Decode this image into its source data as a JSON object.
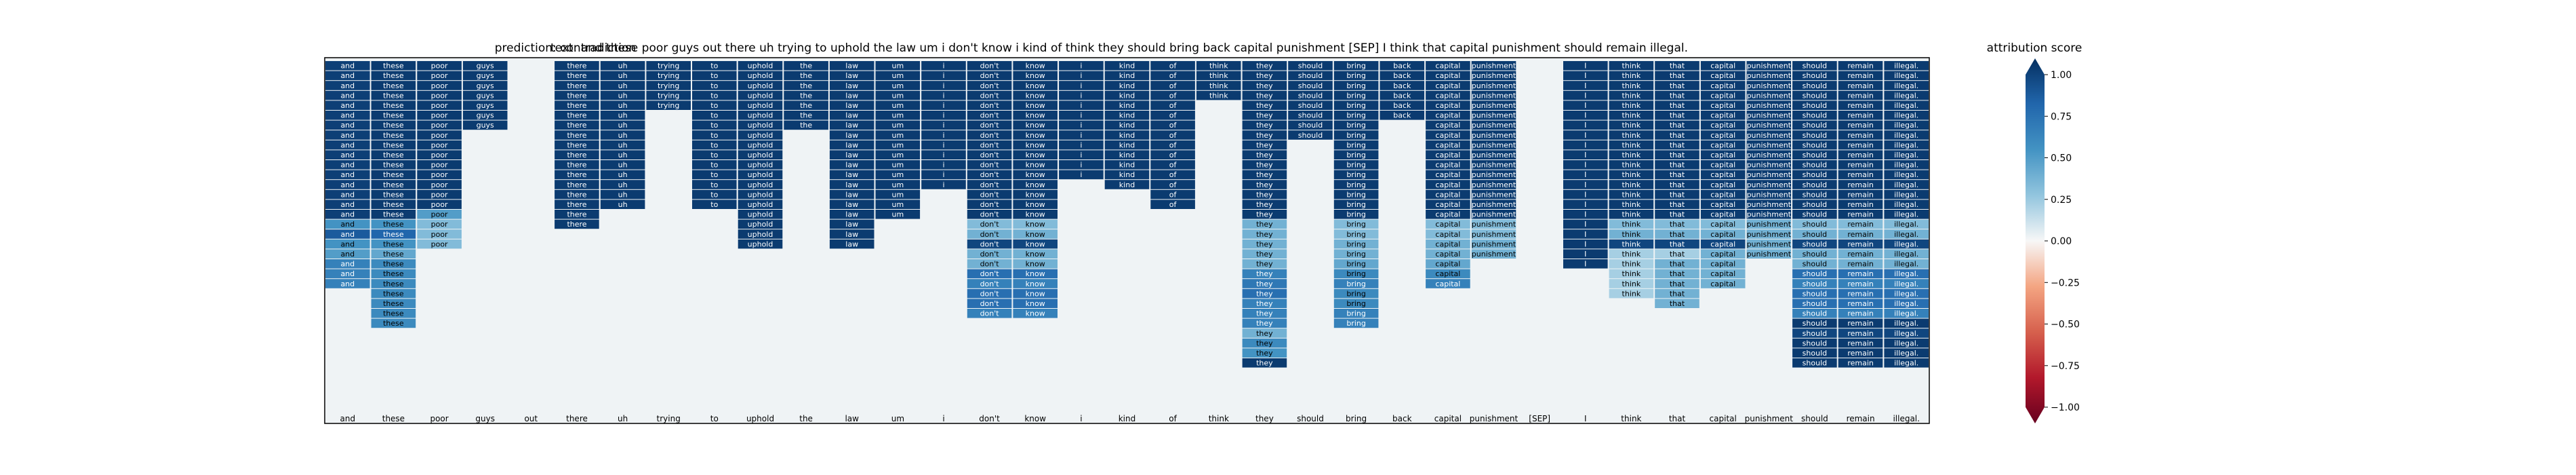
{
  "chart_data": {
    "type": "heatmap",
    "title_prediction": "prediction:  contradiction",
    "title_text": "text:  and these poor guys out there uh trying to uphold the law um i don't know i kind of think they should bring back capital punishment [SEP] I think that capital punishment should remain illegal.",
    "tokens": [
      "and",
      "these",
      "poor",
      "guys",
      "out",
      "there",
      "uh",
      "trying",
      "to",
      "uphold",
      "the",
      "law",
      "um",
      "i",
      "don't",
      "know",
      "i",
      "kind",
      "of",
      "think",
      "they",
      "should",
      "bring",
      "back",
      "capital",
      "punishment",
      "[SEP]",
      "I",
      "think",
      "that",
      "capital",
      "punishment",
      "should",
      "remain",
      "illegal."
    ],
    "cell_labels": [
      "and",
      "these",
      "poor",
      "guys",
      "out",
      "there",
      "uh",
      "trying",
      "to",
      "uphold",
      "the",
      "law",
      "um",
      "i",
      "don't",
      "know",
      "i",
      "kind",
      "of",
      "think",
      "they",
      "should",
      "bring",
      "back",
      "capital",
      "punishment",
      "",
      "I",
      "think",
      "that",
      "capital",
      "punishment",
      "should",
      "remain",
      "illegal."
    ],
    "rows": 23,
    "column_extents": [
      [
        0,
        15,
        -1
      ],
      [
        0,
        19,
        -1
      ],
      [
        0,
        14,
        -1
      ],
      [
        0,
        5,
        -1
      ],
      [
        0,
        -1,
        -1
      ],
      [
        0,
        13,
        -1
      ],
      [
        0,
        11,
        -1
      ],
      [
        0,
        3,
        -1
      ],
      [
        0,
        11,
        -1
      ],
      [
        0,
        15,
        -1
      ],
      [
        0,
        5,
        -1
      ],
      [
        0,
        15,
        -1
      ],
      [
        0,
        12,
        -1
      ],
      [
        0,
        9,
        -1
      ],
      [
        0,
        21,
        -1
      ],
      [
        0,
        21,
        -1
      ],
      [
        0,
        8,
        -1
      ],
      [
        0,
        9,
        -1
      ],
      [
        0,
        11,
        -1
      ],
      [
        0,
        1,
        -1
      ],
      [
        0,
        26,
        -1
      ],
      [
        0,
        4,
        -1
      ],
      [
        0,
        23,
        -1
      ],
      [
        0,
        2,
        -1
      ],
      [
        0,
        19,
        -1
      ],
      [
        0,
        16,
        -1
      ],
      [
        0,
        -1,
        -1
      ],
      [
        0,
        17,
        -1
      ],
      [
        0,
        20,
        -1
      ],
      [
        0,
        21,
        -1
      ],
      [
        0,
        18,
        -1
      ],
      [
        0,
        15,
        -1
      ],
      [
        0,
        26,
        -1
      ],
      [
        0,
        28,
        -1
      ],
      [
        0,
        28,
        -1
      ]
    ],
    "column_values": [
      [
        0.93,
        0.93,
        0.93,
        0.93,
        0.93,
        0.93,
        0.93,
        0.93,
        0.93,
        0.93,
        0.93,
        0.93,
        0.93,
        0.93,
        0.93,
        0.93,
        0.5,
        0.8,
        0.5,
        0.45,
        0.6,
        0.6,
        0.6
      ],
      [
        0.95,
        0.95,
        0.95,
        0.95,
        0.95,
        0.95,
        0.95,
        0.95,
        0.95,
        0.95,
        0.95,
        0.95,
        0.95,
        0.95,
        0.95,
        0.95,
        0.5,
        0.75,
        0.5,
        0.4,
        0.55,
        0.55,
        0.55,
        0.55,
        0.55,
        0.55,
        0.55
      ],
      [
        0.95,
        0.95,
        0.95,
        0.95,
        0.95,
        0.95,
        0.95,
        0.95,
        0.95,
        0.95,
        0.95,
        0.95,
        0.95,
        0.95,
        0.95,
        0.45,
        0.3,
        0.3,
        0.3
      ],
      [
        0.95,
        0.95,
        0.95,
        0.95,
        0.95,
        0.95,
        0.95
      ],
      [
        0.0
      ],
      [
        0.95,
        0.95,
        0.95,
        0.95,
        0.95,
        0.95,
        0.95,
        0.95,
        0.95,
        0.95,
        0.95,
        0.95,
        0.95,
        0.95,
        0.95,
        0.95,
        0.95
      ],
      [
        0.95,
        0.95,
        0.95,
        0.95,
        0.95,
        0.95,
        0.95,
        0.95,
        0.95,
        0.95,
        0.95,
        0.95,
        0.95,
        0.95,
        0.95
      ],
      [
        0.95,
        0.95,
        0.95,
        0.95,
        0.95
      ],
      [
        0.95,
        0.95,
        0.95,
        0.95,
        0.95,
        0.95,
        0.95,
        0.95,
        0.95,
        0.95,
        0.95,
        0.95,
        0.95,
        0.95,
        0.95
      ],
      [
        0.95,
        0.95,
        0.95,
        0.95,
        0.95,
        0.95,
        0.95,
        0.95,
        0.95,
        0.95,
        0.95,
        0.95,
        0.95,
        0.95,
        0.95,
        0.95,
        0.95,
        0.95,
        0.95
      ],
      [
        0.95,
        0.95,
        0.95,
        0.95,
        0.95,
        0.95,
        0.95
      ],
      [
        0.95,
        0.95,
        0.95,
        0.95,
        0.95,
        0.95,
        0.95,
        0.95,
        0.95,
        0.95,
        0.95,
        0.95,
        0.95,
        0.95,
        0.95,
        0.95,
        0.95,
        0.95,
        0.95
      ],
      [
        0.95,
        0.95,
        0.95,
        0.95,
        0.95,
        0.95,
        0.95,
        0.95,
        0.95,
        0.95,
        0.95,
        0.95,
        0.95,
        0.95,
        0.95,
        0.95
      ],
      [
        0.95,
        0.95,
        0.95,
        0.95,
        0.95,
        0.95,
        0.95,
        0.95,
        0.95,
        0.95,
        0.95,
        0.95,
        0.95
      ],
      [
        0.95,
        0.95,
        0.95,
        0.95,
        0.95,
        0.95,
        0.95,
        0.95,
        0.95,
        0.95,
        0.95,
        0.95,
        0.95,
        0.95,
        0.95,
        0.95,
        0.3,
        0.35,
        0.9,
        0.35,
        0.35,
        0.7,
        0.6,
        0.7,
        0.7,
        0.6
      ],
      [
        0.95,
        0.95,
        0.95,
        0.95,
        0.95,
        0.95,
        0.95,
        0.95,
        0.95,
        0.95,
        0.95,
        0.95,
        0.95,
        0.95,
        0.95,
        0.95,
        0.3,
        0.35,
        0.9,
        0.35,
        0.35,
        0.7,
        0.6,
        0.7,
        0.7,
        0.6
      ],
      [
        0.95,
        0.95,
        0.95,
        0.95,
        0.95,
        0.95,
        0.95,
        0.95,
        0.95,
        0.95,
        0.95,
        0.95
      ],
      [
        0.95,
        0.95,
        0.95,
        0.95,
        0.95,
        0.95,
        0.95,
        0.95,
        0.95,
        0.95,
        0.95,
        0.95,
        0.95
      ],
      [
        0.95,
        0.95,
        0.95,
        0.95,
        0.95,
        0.95,
        0.95,
        0.95,
        0.95,
        0.95,
        0.95,
        0.95,
        0.95,
        0.95,
        0.95
      ],
      [
        0.95,
        0.95,
        0.95,
        0.95
      ],
      [
        0.95,
        0.95,
        0.95,
        0.95,
        0.95,
        0.95,
        0.95,
        0.95,
        0.95,
        0.95,
        0.95,
        0.95,
        0.95,
        0.95,
        0.95,
        0.95,
        0.35,
        0.35,
        0.35,
        0.35,
        0.35,
        0.6,
        0.65,
        0.7,
        0.6,
        0.6,
        0.6,
        0.35,
        0.55,
        0.5,
        0.95
      ],
      [
        0.95,
        0.95,
        0.95,
        0.95,
        0.95,
        0.95,
        0.95,
        0.95
      ],
      [
        0.95,
        0.95,
        0.95,
        0.95,
        0.95,
        0.95,
        0.95,
        0.95,
        0.95,
        0.95,
        0.95,
        0.95,
        0.95,
        0.95,
        0.95,
        0.95,
        0.3,
        0.3,
        0.35,
        0.35,
        0.4,
        0.55,
        0.6,
        0.55,
        0.55,
        0.6,
        0.6
      ],
      [
        0.95,
        0.95,
        0.95,
        0.95,
        0.95,
        0.95
      ],
      [
        0.95,
        0.95,
        0.95,
        0.95,
        0.95,
        0.95,
        0.95,
        0.95,
        0.95,
        0.95,
        0.95,
        0.95,
        0.95,
        0.95,
        0.95,
        0.95,
        0.3,
        0.3,
        0.35,
        0.35,
        0.4,
        0.55,
        0.6
      ],
      [
        0.95,
        0.95,
        0.95,
        0.95,
        0.95,
        0.95,
        0.95,
        0.95,
        0.95,
        0.95,
        0.95,
        0.95,
        0.95,
        0.95,
        0.95,
        0.95,
        0.3,
        0.3,
        0.35,
        0.35
      ],
      [
        0.0
      ],
      [
        0.95,
        0.95,
        0.95,
        0.95,
        0.95,
        0.95,
        0.95,
        0.95,
        0.95,
        0.95,
        0.95,
        0.95,
        0.95,
        0.95,
        0.95,
        0.95,
        0.95,
        0.95,
        0.95,
        0.95,
        0.95
      ],
      [
        0.95,
        0.95,
        0.95,
        0.95,
        0.95,
        0.95,
        0.95,
        0.95,
        0.95,
        0.95,
        0.95,
        0.95,
        0.95,
        0.95,
        0.95,
        0.95,
        0.3,
        0.35,
        0.9,
        0.2,
        0.2,
        0.2,
        0.2,
        0.2
      ],
      [
        0.95,
        0.95,
        0.95,
        0.95,
        0.95,
        0.95,
        0.95,
        0.95,
        0.95,
        0.95,
        0.95,
        0.95,
        0.95,
        0.95,
        0.95,
        0.95,
        0.3,
        0.35,
        0.9,
        0.2,
        0.35,
        0.35,
        0.35,
        0.35,
        0.35
      ],
      [
        0.95,
        0.95,
        0.95,
        0.95,
        0.95,
        0.95,
        0.95,
        0.95,
        0.95,
        0.95,
        0.95,
        0.95,
        0.95,
        0.95,
        0.95,
        0.95,
        0.3,
        0.35,
        0.9,
        0.35,
        0.35,
        0.35,
        0.35
      ],
      [
        0.95,
        0.95,
        0.95,
        0.95,
        0.95,
        0.95,
        0.95,
        0.95,
        0.95,
        0.95,
        0.95,
        0.95,
        0.95,
        0.95,
        0.95,
        0.95,
        0.35,
        0.35,
        0.35,
        0.35
      ],
      [
        0.95,
        0.95,
        0.95,
        0.95,
        0.95,
        0.95,
        0.95,
        0.95,
        0.95,
        0.95,
        0.95,
        0.95,
        0.95,
        0.95,
        0.95,
        0.95,
        0.3,
        0.35,
        0.9,
        0.35,
        0.35,
        0.7,
        0.6,
        0.7,
        0.7,
        0.6,
        0.95,
        0.9,
        0.95,
        0.95,
        0.95
      ],
      [
        0.95,
        0.95,
        0.95,
        0.95,
        0.95,
        0.95,
        0.95,
        0.95,
        0.95,
        0.95,
        0.95,
        0.95,
        0.95,
        0.95,
        0.95,
        0.95,
        0.3,
        0.35,
        0.9,
        0.35,
        0.35,
        0.7,
        0.6,
        0.7,
        0.7,
        0.6,
        0.95,
        0.9,
        0.95,
        0.95,
        0.95
      ],
      [
        0.95,
        0.95,
        0.95,
        0.95,
        0.95,
        0.95,
        0.95,
        0.95,
        0.95,
        0.95,
        0.95,
        0.95,
        0.95,
        0.95,
        0.95,
        0.95,
        0.3,
        0.35,
        0.9,
        0.35,
        0.35,
        0.7,
        0.6,
        0.7,
        0.7,
        0.6,
        0.95,
        0.9,
        0.95,
        0.95,
        0.95
      ]
    ],
    "colorbar": {
      "label": "attribution score",
      "ticks": [
        "1.00",
        "0.75",
        "0.50",
        "0.25",
        "0.00",
        "−0.25",
        "−0.50",
        "−0.75",
        "−1.00"
      ],
      "range": [
        -1.0,
        1.0
      ],
      "colormap": "RdBu"
    }
  }
}
